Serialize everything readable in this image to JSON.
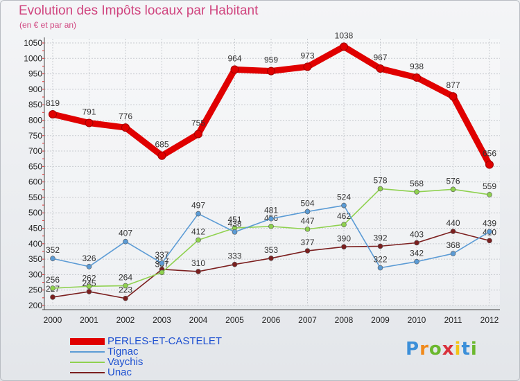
{
  "header": {
    "title": "Evolution des Impôts locaux par Habitant",
    "subtitle": "(en € et par an)"
  },
  "logo": {
    "text": "Proxiti",
    "colors": [
      "#3b8fd9",
      "#f08a1c",
      "#6bb82e",
      "#d9303b",
      "#f3c416",
      "#3b8fd9",
      "#6bb82e"
    ]
  },
  "chart_data": {
    "type": "line",
    "title": "Evolution des Impôts locaux par Habitant",
    "subtitle": "(en € et par an)",
    "xlabel": "",
    "ylabel": "",
    "x": [
      "2000",
      "2001",
      "2002",
      "2003",
      "2004",
      "2005",
      "2006",
      "2007",
      "2008",
      "2009",
      "2010",
      "2011",
      "2012"
    ],
    "ylim": [
      200,
      1050
    ],
    "yticks": [
      200,
      250,
      300,
      350,
      400,
      450,
      500,
      550,
      600,
      650,
      700,
      750,
      800,
      850,
      900,
      950,
      1000,
      1050
    ],
    "grid": true,
    "legend_position": "bottom-left",
    "series": [
      {
        "name": "PERLES-ET-CASTELET",
        "color": "#e00000",
        "bold": true,
        "values": [
          819,
          791,
          776,
          685,
          755,
          964,
          959,
          973,
          1038,
          967,
          938,
          877,
          656
        ]
      },
      {
        "name": "Tignac",
        "color": "#5b9bd5",
        "values": [
          352,
          326,
          407,
          337,
          497,
          438,
          481,
          504,
          524,
          322,
          342,
          368,
          439
        ]
      },
      {
        "name": "Vaychis",
        "color": "#8fd14f",
        "values": [
          256,
          262,
          264,
          307,
          412,
          451,
          456,
          447,
          462,
          578,
          568,
          576,
          559
        ]
      },
      {
        "name": "Unac",
        "color": "#7b1f1f",
        "values": [
          227,
          245,
          223,
          317,
          310,
          333,
          353,
          377,
          390,
          392,
          403,
          440,
          410
        ]
      }
    ]
  }
}
